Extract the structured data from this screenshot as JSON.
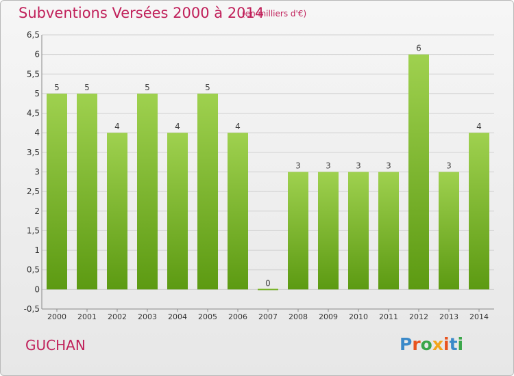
{
  "header": {
    "title": "Subventions Versées 2000 à 2014",
    "subtitle": "(en milliers d'€)"
  },
  "footer": {
    "commune": "GUCHAN",
    "logo_text": "Proxiti"
  },
  "colors": {
    "title": "#c0205a",
    "bar_top": "#9fd14f",
    "bar_bottom": "#5c9a12",
    "grid": "#cfcfcf",
    "logo_letters": [
      "#3a89c9",
      "#e8531e",
      "#3aa64a",
      "#f3a51c",
      "#e8531e",
      "#3a89c9",
      "#3aa64a"
    ]
  },
  "chart_data": {
    "type": "bar",
    "categories": [
      "2000",
      "2001",
      "2002",
      "2003",
      "2004",
      "2005",
      "2006",
      "2007",
      "2008",
      "2009",
      "2010",
      "2011",
      "2012",
      "2013",
      "2014"
    ],
    "values": [
      5,
      5,
      4,
      5,
      4,
      5,
      4,
      0,
      3,
      3,
      3,
      3,
      6,
      3,
      4
    ],
    "ylim": [
      -0.5,
      6.5
    ],
    "yticks": [
      "-0,5",
      "0",
      "0,5",
      "1",
      "1,5",
      "2",
      "2,5",
      "3",
      "3,5",
      "4",
      "4,5",
      "5",
      "5,5",
      "6",
      "6,5"
    ],
    "ytick_values": [
      -0.5,
      0,
      0.5,
      1,
      1.5,
      2,
      2.5,
      3,
      3.5,
      4,
      4.5,
      5,
      5.5,
      6,
      6.5
    ],
    "grid": true,
    "data_labels": true
  }
}
